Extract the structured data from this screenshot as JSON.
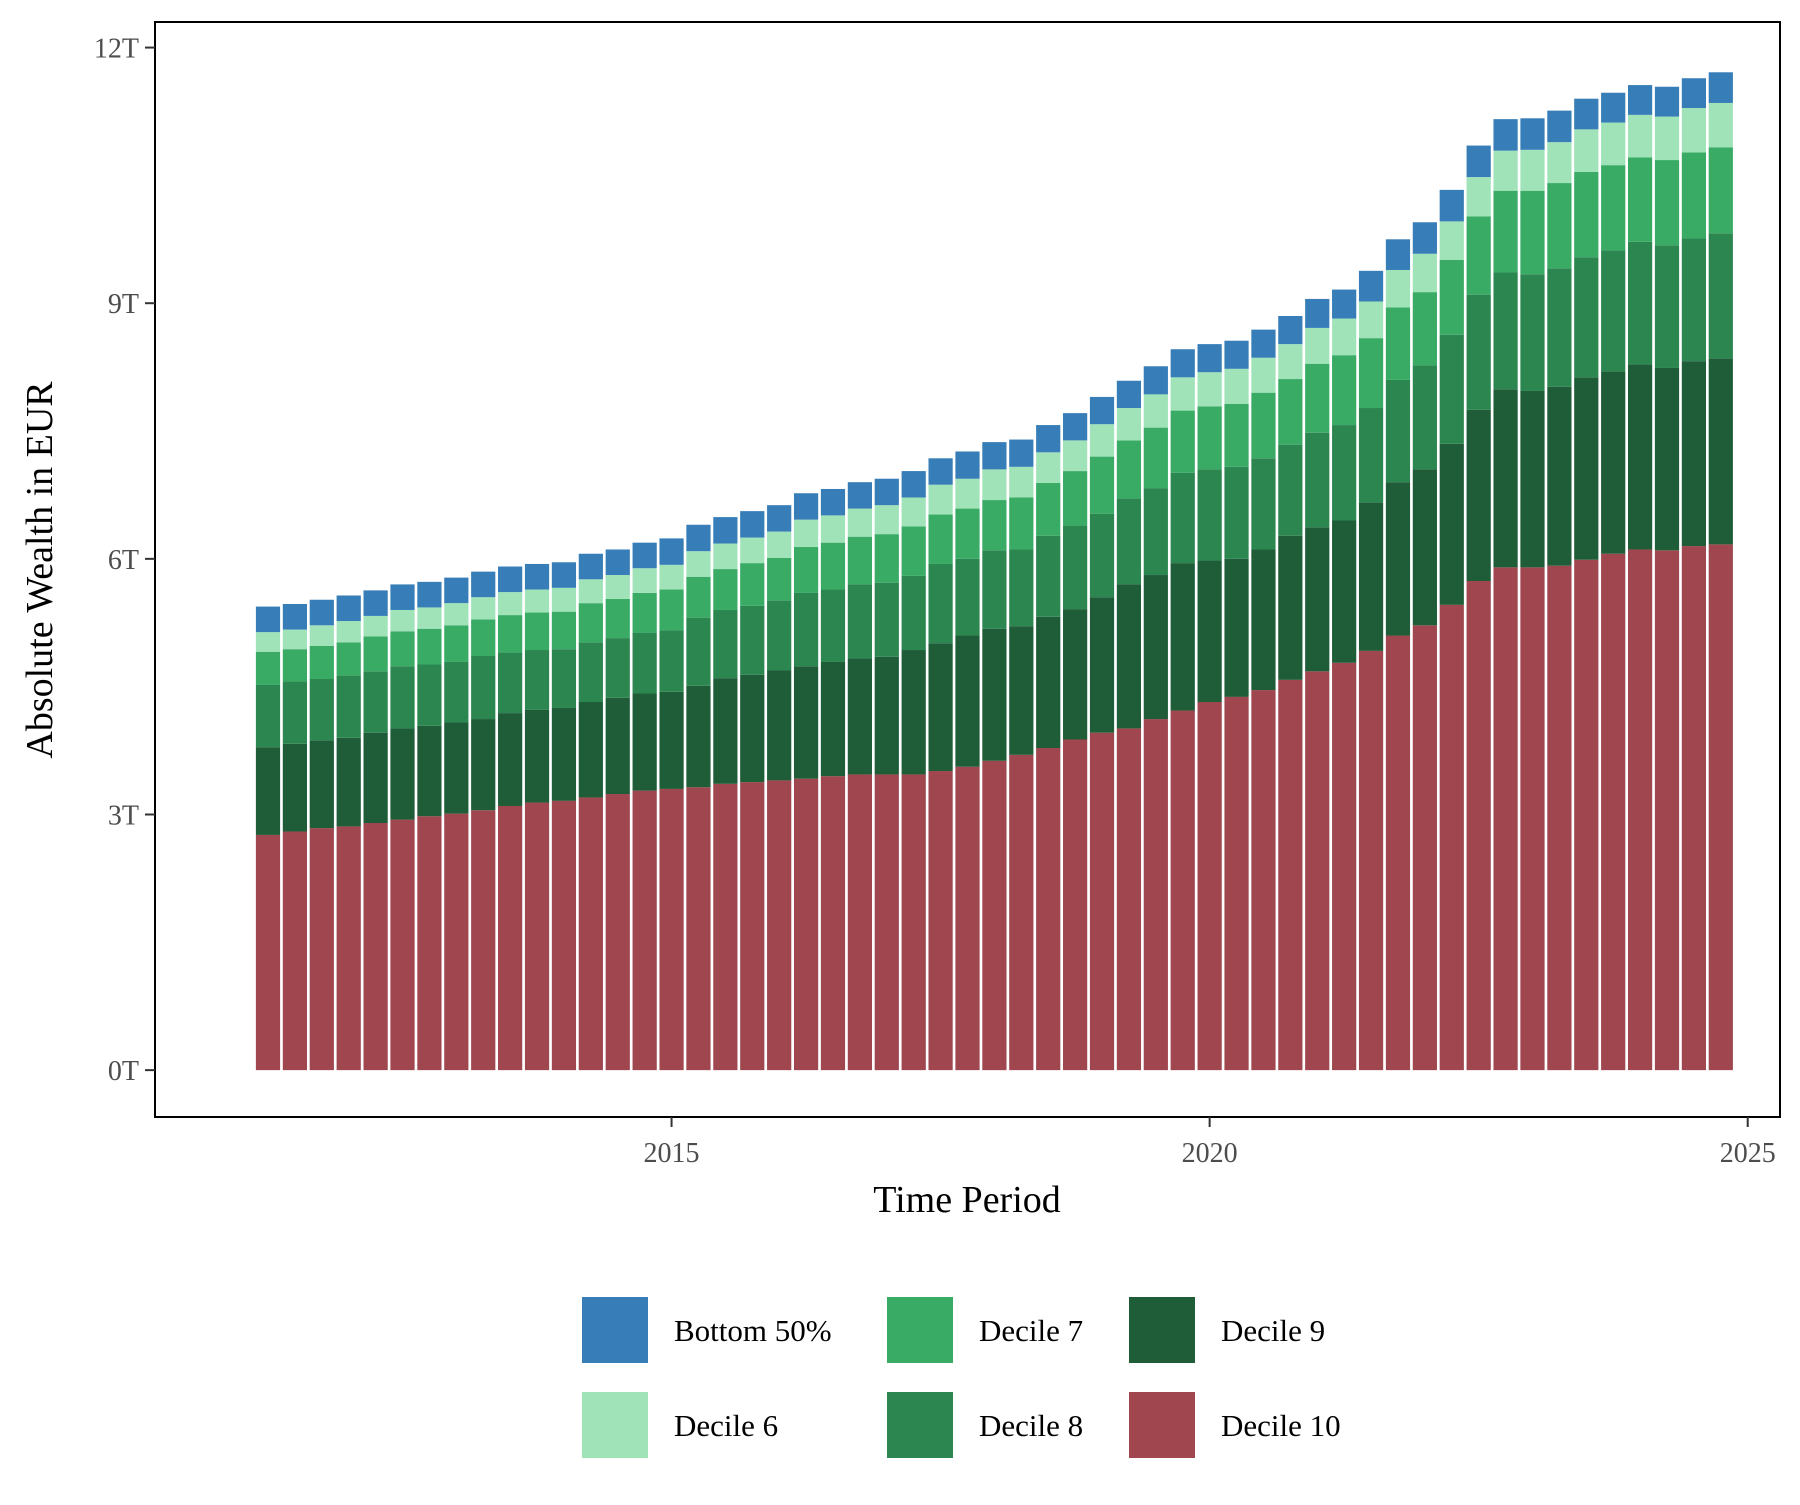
{
  "chart_data": {
    "type": "bar",
    "stacked": true,
    "title": "",
    "xlabel": "Time Period",
    "ylabel": "Absolute Wealth in EUR",
    "x_ticks": [
      2015,
      2020,
      2025
    ],
    "y_ticks": [
      0,
      3,
      6,
      9,
      12
    ],
    "y_tick_labels": [
      "0T",
      "3T",
      "6T",
      "9T",
      "12T"
    ],
    "xlim": [
      2010.2,
      2025.3
    ],
    "ylim": [
      -0.55,
      12.3
    ],
    "grid": false,
    "legend_position": "bottom",
    "x": [
      2011.25,
      2011.5,
      2011.75,
      2012.0,
      2012.25,
      2012.5,
      2012.75,
      2013.0,
      2013.25,
      2013.5,
      2013.75,
      2014.0,
      2014.25,
      2014.5,
      2014.75,
      2015.0,
      2015.25,
      2015.5,
      2015.75,
      2016.0,
      2016.25,
      2016.5,
      2016.75,
      2017.0,
      2017.25,
      2017.5,
      2017.75,
      2018.0,
      2018.25,
      2018.5,
      2018.75,
      2019.0,
      2019.25,
      2019.5,
      2019.75,
      2020.0,
      2020.25,
      2020.5,
      2020.75,
      2021.0,
      2021.25,
      2021.5,
      2021.75,
      2022.0,
      2022.25,
      2022.5,
      2022.75,
      2023.0,
      2023.25,
      2023.5,
      2023.75,
      2024.0,
      2024.25,
      2024.5,
      2024.75
    ],
    "series": [
      {
        "name": "Decile 10",
        "color": "#a0464f",
        "values": [
          2.76,
          2.8,
          2.84,
          2.86,
          2.9,
          2.94,
          2.98,
          3.01,
          3.05,
          3.1,
          3.14,
          3.16,
          3.2,
          3.24,
          3.28,
          3.3,
          3.32,
          3.36,
          3.38,
          3.4,
          3.42,
          3.45,
          3.47,
          3.47,
          3.47,
          3.51,
          3.56,
          3.63,
          3.7,
          3.78,
          3.88,
          3.96,
          4.01,
          4.12,
          4.22,
          4.32,
          4.38,
          4.46,
          4.58,
          4.68,
          4.78,
          4.92,
          5.1,
          5.22,
          5.46,
          5.74,
          5.9,
          5.9,
          5.92,
          5.99,
          6.06,
          6.11,
          6.1,
          6.15,
          6.17
        ]
      },
      {
        "name": "Decile 9",
        "color": "#1f5c38",
        "values": [
          1.03,
          1.03,
          1.03,
          1.04,
          1.06,
          1.07,
          1.06,
          1.07,
          1.07,
          1.09,
          1.09,
          1.09,
          1.12,
          1.13,
          1.14,
          1.14,
          1.19,
          1.24,
          1.26,
          1.29,
          1.32,
          1.34,
          1.36,
          1.38,
          1.46,
          1.5,
          1.54,
          1.55,
          1.51,
          1.54,
          1.53,
          1.59,
          1.69,
          1.69,
          1.73,
          1.66,
          1.62,
          1.65,
          1.69,
          1.69,
          1.67,
          1.74,
          1.8,
          1.83,
          1.89,
          2.01,
          2.09,
          2.07,
          2.1,
          2.14,
          2.14,
          2.17,
          2.14,
          2.17,
          2.18
        ]
      },
      {
        "name": "Decile 8",
        "color": "#2c8650",
        "values": [
          0.73,
          0.73,
          0.72,
          0.73,
          0.72,
          0.73,
          0.72,
          0.71,
          0.74,
          0.71,
          0.7,
          0.69,
          0.7,
          0.7,
          0.71,
          0.72,
          0.8,
          0.8,
          0.81,
          0.82,
          0.86,
          0.85,
          0.87,
          0.87,
          0.87,
          0.93,
          0.9,
          0.92,
          0.9,
          0.95,
          0.98,
          0.98,
          1.01,
          1.02,
          1.06,
          1.07,
          1.08,
          1.07,
          1.07,
          1.11,
          1.12,
          1.11,
          1.2,
          1.22,
          1.28,
          1.35,
          1.37,
          1.37,
          1.39,
          1.41,
          1.42,
          1.44,
          1.44,
          1.44,
          1.47
        ]
      },
      {
        "name": "Decile 7",
        "color": "#39ab65",
        "values": [
          0.39,
          0.38,
          0.39,
          0.39,
          0.41,
          0.41,
          0.42,
          0.43,
          0.43,
          0.44,
          0.44,
          0.44,
          0.46,
          0.46,
          0.47,
          0.48,
          0.48,
          0.48,
          0.5,
          0.5,
          0.54,
          0.55,
          0.56,
          0.57,
          0.58,
          0.58,
          0.59,
          0.59,
          0.61,
          0.62,
          0.64,
          0.67,
          0.68,
          0.71,
          0.73,
          0.74,
          0.74,
          0.77,
          0.77,
          0.81,
          0.82,
          0.82,
          0.85,
          0.86,
          0.88,
          0.92,
          0.96,
          0.98,
          1.0,
          1.0,
          1.0,
          0.99,
          1.0,
          1.01,
          1.01
        ]
      },
      {
        "name": "Decile 6",
        "color": "#a1e3b9",
        "values": [
          0.23,
          0.23,
          0.24,
          0.25,
          0.24,
          0.25,
          0.25,
          0.26,
          0.26,
          0.27,
          0.27,
          0.28,
          0.28,
          0.28,
          0.29,
          0.29,
          0.3,
          0.3,
          0.3,
          0.31,
          0.32,
          0.32,
          0.33,
          0.34,
          0.34,
          0.35,
          0.35,
          0.36,
          0.36,
          0.36,
          0.36,
          0.38,
          0.38,
          0.39,
          0.39,
          0.4,
          0.41,
          0.41,
          0.41,
          0.42,
          0.43,
          0.43,
          0.44,
          0.45,
          0.45,
          0.46,
          0.47,
          0.48,
          0.48,
          0.5,
          0.5,
          0.5,
          0.51,
          0.52,
          0.52
        ]
      },
      {
        "name": "Bottom 50%",
        "color": "#377eb8",
        "values": [
          0.3,
          0.3,
          0.3,
          0.3,
          0.3,
          0.3,
          0.3,
          0.3,
          0.3,
          0.3,
          0.3,
          0.3,
          0.3,
          0.3,
          0.3,
          0.31,
          0.31,
          0.31,
          0.31,
          0.31,
          0.31,
          0.31,
          0.31,
          0.31,
          0.31,
          0.31,
          0.32,
          0.32,
          0.32,
          0.32,
          0.32,
          0.32,
          0.32,
          0.33,
          0.33,
          0.33,
          0.33,
          0.33,
          0.33,
          0.34,
          0.34,
          0.36,
          0.36,
          0.37,
          0.37,
          0.37,
          0.37,
          0.37,
          0.37,
          0.36,
          0.35,
          0.35,
          0.35,
          0.35,
          0.36
        ]
      }
    ],
    "legend": [
      {
        "name": "Bottom 50%",
        "color": "#377eb8"
      },
      {
        "name": "Decile 6",
        "color": "#a1e3b9"
      },
      {
        "name": "Decile 7",
        "color": "#39ab65"
      },
      {
        "name": "Decile 8",
        "color": "#2c8650"
      },
      {
        "name": "Decile 9",
        "color": "#1f5c38"
      },
      {
        "name": "Decile 10",
        "color": "#a0464f"
      }
    ]
  }
}
